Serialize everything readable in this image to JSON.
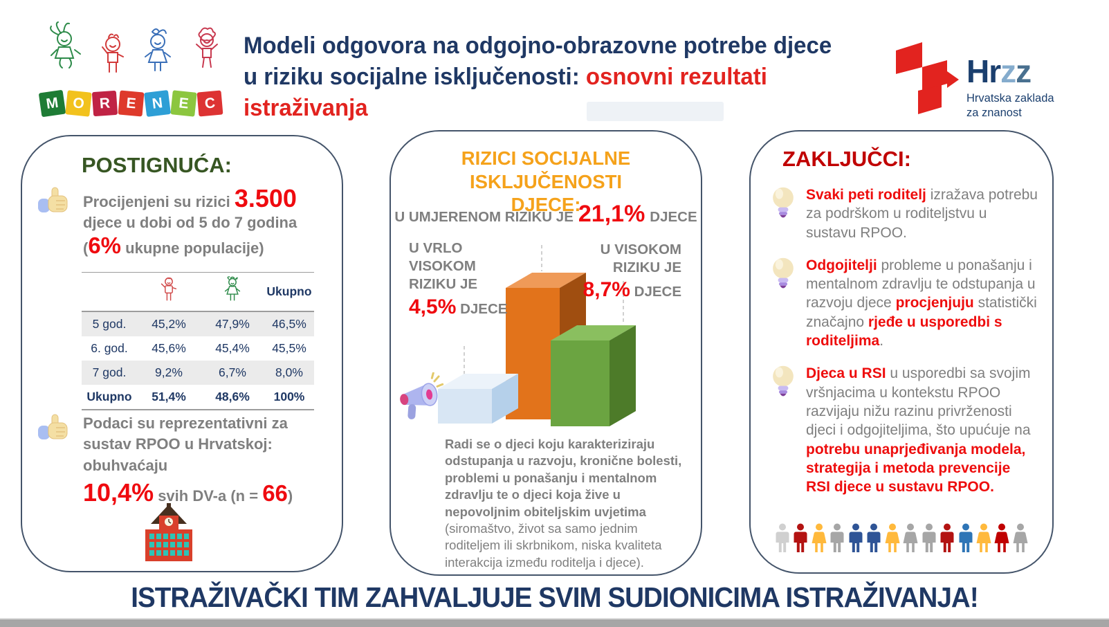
{
  "header": {
    "morenec": {
      "blocks": [
        {
          "letter": "M",
          "color": "#1E7C35"
        },
        {
          "letter": "O",
          "color": "#F2C21D"
        },
        {
          "letter": "R",
          "color": "#C02344"
        },
        {
          "letter": "E",
          "color": "#DE3A2B"
        },
        {
          "letter": "N",
          "color": "#2E9FD6"
        },
        {
          "letter": "E",
          "color": "#8CC63F"
        },
        {
          "letter": "C",
          "color": "#DD3333"
        }
      ]
    },
    "title": {
      "part_navy": "Modeli odgovora na odgojno-obrazovne potrebe djece u riziku socijalne isključenosti: ",
      "part_red": "osnovni rezultati istraživanja"
    },
    "hrzz": {
      "word_part1": "Hr",
      "word_part2": "z",
      "word_part3": "z",
      "subtitle_line1": "Hrvatska zaklada",
      "subtitle_line2": "za znanost"
    }
  },
  "panels": {
    "left": {
      "heading": "POSTIGNUĆA:",
      "item1": {
        "lead": "Procijenjeni su rizici ",
        "big_number": "3.500",
        "line2": "djece u dobi od 5 do 7 godina",
        "paren_open": "(",
        "percent": "6%",
        "paren_rest": " ukupne populacije)"
      },
      "table": {
        "col_header_total": "Ukupno",
        "rows": [
          {
            "label": "5 god.",
            "boys": "45,2%",
            "girls": "47,9%",
            "total": "46,5%"
          },
          {
            "label": "6. god.",
            "boys": "45,6%",
            "girls": "45,4%",
            "total": "45,5%"
          },
          {
            "label": "7 god.",
            "boys": "9,2%",
            "girls": "6,7%",
            "total": "8,0%"
          },
          {
            "label": "Ukupno",
            "boys": "51,4%",
            "girls": "48,6%",
            "total": "100%"
          }
        ]
      },
      "item2": {
        "text": "Podaci su reprezentativni za sustav RPOO u Hrvatskoj: obuhvaćaju",
        "percent": "10,4%",
        "mid": " svih DV-a (n = ",
        "n": "66",
        "close": ")"
      }
    },
    "middle": {
      "heading": "RIZICI SOCIJALNE ISKLJUČENOSTI DJECE:",
      "moderate": {
        "prefix": "U UMJERENOM RIZIKU JE",
        "value": "21,1%",
        "suffix": "DJECE"
      },
      "very_high": {
        "prefix": "U VRLO VISOKOM RIZIKU JE",
        "value": "4,5%",
        "suffix": " DJECE"
      },
      "high": {
        "prefix": "U VISOKOM RIZIKU JE",
        "value": "8,7%",
        "suffix": " DJECE"
      },
      "description_bold": "Radi se o djeci koju karakteriziraju odstupanja u razvoju, kronične bolesti, problemi u ponašanju i mentalnom zdravlju te o djeci koja žive u nepovoljnim obiteljskim uvjetima",
      "description_normal": " (siromaštvo, život sa samo jednim roditeljem ili skrbnikom, niska kvaliteta interakcija između roditelja i djece).",
      "chart_data": {
        "type": "bar",
        "categories": [
          "U vrlo visokom riziku",
          "U umjerenom riziku",
          "U visokom riziku"
        ],
        "values": [
          4.5,
          21.1,
          8.7
        ],
        "unit": "% djece",
        "colors": [
          "#D8E6F4",
          "#E2731B",
          "#6BA441"
        ],
        "style": "3d-isometric"
      }
    },
    "right": {
      "heading": "ZAKLJUČCI:",
      "bullets": [
        {
          "segments": [
            {
              "text": "Svaki peti roditelj",
              "style": "red"
            },
            {
              "text": " izražava potrebu za podrškom u roditeljstvu u sustavu RPOO.",
              "style": "gray"
            }
          ]
        },
        {
          "segments": [
            {
              "text": "Odgojitelji",
              "style": "red"
            },
            {
              "text": " probleme u ponašanju i mentalnom zdravlju te odstupanja u razvoju djece ",
              "style": "gray"
            },
            {
              "text": "procjenjuju",
              "style": "red"
            },
            {
              "text": " statistički značajno ",
              "style": "gray"
            },
            {
              "text": "rjeđe u usporedbi s roditeljima",
              "style": "red"
            },
            {
              "text": ".",
              "style": "gray"
            }
          ]
        },
        {
          "segments": [
            {
              "text": "Djeca u RSI",
              "style": "red"
            },
            {
              "text": " u usporedbi sa svojim vršnjacima u kontekstu RPOO razvijaju nižu razinu privrženosti djeci i odgojiteljima, što upućuje na ",
              "style": "gray"
            },
            {
              "text": "potrebu unaprjeđivanja modela, strategija i metoda prevencije RSI djece u sustavu RPOO.",
              "style": "red"
            }
          ]
        }
      ],
      "people": [
        {
          "gender": "m",
          "color": "#D0D0D0"
        },
        {
          "gender": "m",
          "color": "#B31312"
        },
        {
          "gender": "f",
          "color": "#FFB93C"
        },
        {
          "gender": "m",
          "color": "#A6A6A6"
        },
        {
          "gender": "m",
          "color": "#2F5496"
        },
        {
          "gender": "m",
          "color": "#2F5496"
        },
        {
          "gender": "f",
          "color": "#FFB93C"
        },
        {
          "gender": "f",
          "color": "#A6A6A6"
        },
        {
          "gender": "m",
          "color": "#A6A6A6"
        },
        {
          "gender": "m",
          "color": "#B31312"
        },
        {
          "gender": "m",
          "color": "#2E75B6"
        },
        {
          "gender": "f",
          "color": "#FFB93C"
        },
        {
          "gender": "f",
          "color": "#C00000"
        },
        {
          "gender": "f",
          "color": "#A6A6A6"
        }
      ]
    }
  },
  "footer": {
    "text": "ISTRAŽIVAČKI TIM ZAHVALJUJE SVIM SUDIONICIMA ISTRAŽIVANJA!"
  }
}
